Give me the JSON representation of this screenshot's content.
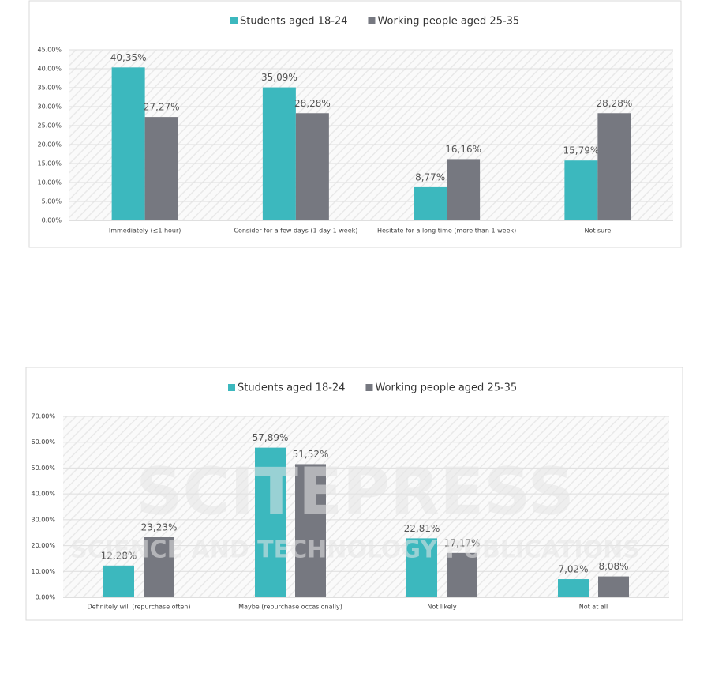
{
  "watermark": {
    "title": "SCITEPRESS",
    "subtitle": "SCIENCE AND TECHNOLOGY PUBLICATIONS"
  },
  "chart_data": [
    {
      "type": "bar",
      "categories": [
        "Immediately (≤1 hour)",
        "Consider for a few days (1 day-1 week)",
        "Hesitate for a long time (more than 1 week)",
        "Not sure"
      ],
      "series": [
        {
          "name": "Students aged 18-24",
          "color": "#3cb8be",
          "values": [
            40.35,
            35.09,
            8.77,
            15.79
          ],
          "value_labels": [
            "40,35%",
            "35,09%",
            "8,77%",
            "15,79%"
          ]
        },
        {
          "name": "Working people aged 25-35",
          "color": "#767880",
          "values": [
            27.27,
            28.28,
            16.16,
            28.28
          ],
          "value_labels": [
            "27,27%",
            "28,28%",
            "16,16%",
            "28,28%"
          ]
        }
      ],
      "ylim": [
        0,
        45
      ],
      "yticks": [
        {
          "value": 0,
          "label": "0.00%"
        },
        {
          "value": 5,
          "label": "5.00%"
        },
        {
          "value": 10,
          "label": "10.00%"
        },
        {
          "value": 15,
          "label": "15.00%"
        },
        {
          "value": 20,
          "label": "20.00%"
        },
        {
          "value": 25,
          "label": "25.00%"
        },
        {
          "value": 30,
          "label": "30.00%"
        },
        {
          "value": 35,
          "label": "35.00%"
        },
        {
          "value": 40,
          "label": "40.00%"
        },
        {
          "value": 45,
          "label": "45.00%"
        }
      ],
      "grid": true,
      "legend": "top"
    },
    {
      "type": "bar",
      "categories": [
        "Definitely will (repurchase often)",
        "Maybe (repurchase occasionally)",
        "Not likely",
        "Not at all"
      ],
      "series": [
        {
          "name": "Students aged 18-24",
          "color": "#3cb8be",
          "values": [
            12.28,
            57.89,
            22.81,
            7.02
          ],
          "value_labels": [
            "12,28%",
            "57,89%",
            "22,81%",
            "7,02%"
          ]
        },
        {
          "name": "Working people aged 25-35",
          "color": "#767880",
          "values": [
            23.23,
            51.52,
            17.17,
            8.08
          ],
          "value_labels": [
            "23,23%",
            "51,52%",
            "17,17%",
            "8,08%"
          ]
        }
      ],
      "ylim": [
        0,
        70
      ],
      "yticks": [
        {
          "value": 0,
          "label": "0.00%"
        },
        {
          "value": 10,
          "label": "10.00%"
        },
        {
          "value": 20,
          "label": "20.00%"
        },
        {
          "value": 30,
          "label": "30.00%"
        },
        {
          "value": 40,
          "label": "40.00%"
        },
        {
          "value": 50,
          "label": "50.00%"
        },
        {
          "value": 60,
          "label": "60.00%"
        },
        {
          "value": 70,
          "label": "70.00%"
        }
      ],
      "grid": true,
      "legend": "top"
    }
  ]
}
